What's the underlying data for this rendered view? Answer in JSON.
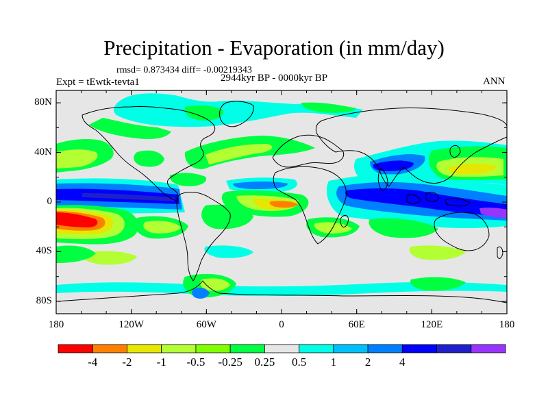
{
  "title": "Precipitation - Evaporation (in mm/day)",
  "stats": "rmsd= 0.873434 diff= -0.00219343",
  "experiment": "Expt = tEwtk-tevta1",
  "period": "2944kyr BP - 0000kyr BP",
  "season": "ANN",
  "map": {
    "lat_ticks": [
      {
        "label": "80N",
        "lat": 80
      },
      {
        "label": "40N",
        "lat": 40
      },
      {
        "label": "0",
        "lat": 0
      },
      {
        "label": "40S",
        "lat": -40
      },
      {
        "label": "80S",
        "lat": -80
      }
    ],
    "lon_ticks": [
      {
        "label": "180",
        "lon": -180
      },
      {
        "label": "120W",
        "lon": -120
      },
      {
        "label": "60W",
        "lon": -60
      },
      {
        "label": "0",
        "lon": 0
      },
      {
        "label": "60E",
        "lon": 60
      },
      {
        "label": "120E",
        "lon": 120
      },
      {
        "label": "180",
        "lon": 180
      }
    ],
    "background_color": "#e6e6e6",
    "coastline_color": "#000000"
  },
  "colorbar": {
    "colors": [
      "#ff0000",
      "#ff8000",
      "#e6e600",
      "#b3ff33",
      "#80ff00",
      "#00ff40",
      "#e6e6e6",
      "#00ffe6",
      "#00bfff",
      "#0080ff",
      "#0000ff",
      "#1f1fcc",
      "#9933ff"
    ],
    "labels": [
      "-4",
      "-2",
      "-1",
      "-0.5",
      "-0.25",
      "0.25",
      "0.5",
      "1",
      "2",
      "4"
    ],
    "label_after_box": [
      1,
      2,
      3,
      4,
      5,
      6,
      7,
      8,
      9,
      10
    ]
  }
}
